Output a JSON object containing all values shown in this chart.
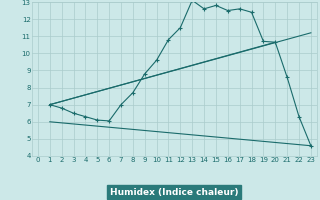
{
  "xlabel": "Humidex (Indice chaleur)",
  "bg_color": "#cce8e8",
  "grid_color": "#aacccc",
  "line_color": "#1a6b6b",
  "xlabel_bg": "#2a7a7a",
  "xlabel_fg": "#ffffff",
  "xlim": [
    -0.5,
    23.5
  ],
  "ylim": [
    4,
    13
  ],
  "xticks": [
    0,
    1,
    2,
    3,
    4,
    5,
    6,
    7,
    8,
    9,
    10,
    11,
    12,
    13,
    14,
    15,
    16,
    17,
    18,
    19,
    20,
    21,
    22,
    23
  ],
  "yticks": [
    4,
    5,
    6,
    7,
    8,
    9,
    10,
    11,
    12,
    13
  ],
  "main_x": [
    1,
    2,
    3,
    4,
    5,
    6,
    7,
    8,
    9,
    10,
    11,
    12,
    13,
    14,
    15,
    16,
    17,
    18,
    19,
    20,
    21,
    22,
    23
  ],
  "main_y": [
    7.0,
    6.8,
    6.5,
    6.3,
    6.1,
    6.05,
    7.0,
    7.7,
    8.8,
    9.6,
    10.8,
    11.5,
    13.1,
    12.6,
    12.8,
    12.5,
    12.6,
    12.4,
    10.7,
    10.65,
    8.6,
    6.3,
    4.6
  ],
  "line1_x": [
    1,
    23
  ],
  "line1_y": [
    7.0,
    11.2
  ],
  "line2_x": [
    1,
    20
  ],
  "line2_y": [
    7.0,
    10.65
  ],
  "line3_x": [
    1,
    23
  ],
  "line3_y": [
    6.0,
    4.6
  ]
}
